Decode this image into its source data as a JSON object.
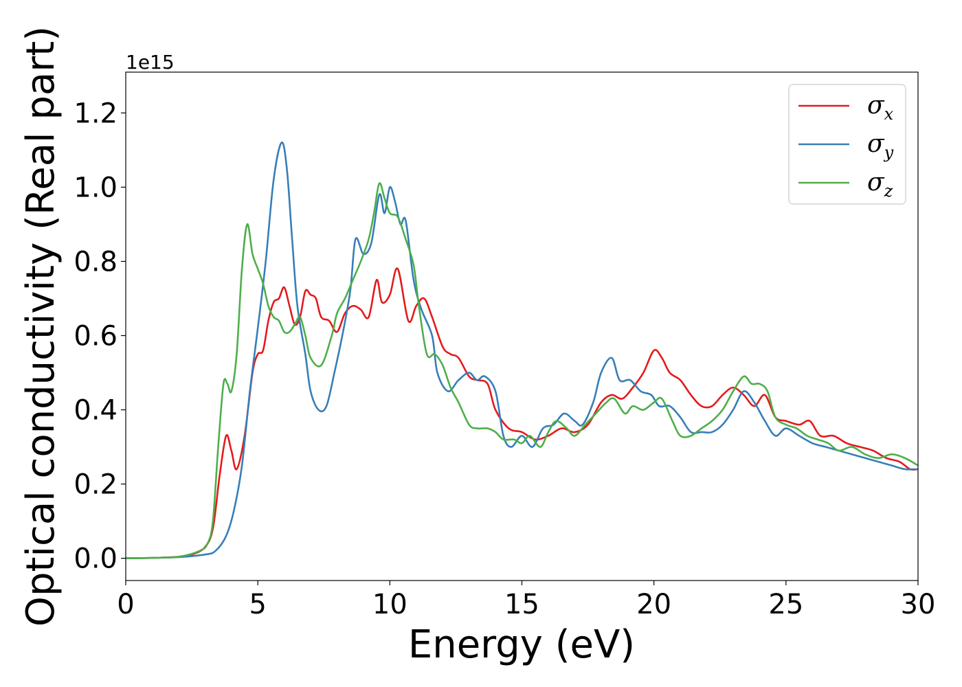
{
  "chart_data": {
    "type": "line",
    "title": "",
    "xlabel": "Energy (eV)",
    "ylabel": "Optical conductivity (Real part)",
    "y_offset_label": "1e15",
    "xlim": [
      0,
      30
    ],
    "ylim": [
      -0.06,
      1.31
    ],
    "xticks": [
      0,
      5,
      10,
      15,
      20,
      25,
      30
    ],
    "xtick_labels": [
      "0",
      "5",
      "10",
      "15",
      "20",
      "25",
      "30"
    ],
    "yticks": [
      0.0,
      0.2,
      0.4,
      0.6,
      0.8,
      1.0,
      1.2
    ],
    "ytick_labels": [
      "0.0",
      "0.2",
      "0.4",
      "0.6",
      "0.8",
      "1.0",
      "1.2"
    ],
    "grid": false,
    "legend_position": "top-right",
    "series": [
      {
        "name": "σ",
        "subscript": "x",
        "color": "#e41a1c",
        "points": [
          [
            0,
            0
          ],
          [
            1,
            0.001
          ],
          [
            2,
            0.004
          ],
          [
            2.5,
            0.01
          ],
          [
            3,
            0.03
          ],
          [
            3.3,
            0.08
          ],
          [
            3.55,
            0.22
          ],
          [
            3.8,
            0.33
          ],
          [
            4.0,
            0.29
          ],
          [
            4.2,
            0.24
          ],
          [
            4.5,
            0.33
          ],
          [
            4.8,
            0.5
          ],
          [
            5.0,
            0.55
          ],
          [
            5.2,
            0.56
          ],
          [
            5.4,
            0.64
          ],
          [
            5.6,
            0.69
          ],
          [
            5.8,
            0.7
          ],
          [
            6.0,
            0.73
          ],
          [
            6.2,
            0.68
          ],
          [
            6.4,
            0.63
          ],
          [
            6.6,
            0.65
          ],
          [
            6.8,
            0.72
          ],
          [
            7.0,
            0.71
          ],
          [
            7.2,
            0.7
          ],
          [
            7.4,
            0.65
          ],
          [
            7.7,
            0.64
          ],
          [
            8.0,
            0.61
          ],
          [
            8.3,
            0.66
          ],
          [
            8.6,
            0.68
          ],
          [
            8.9,
            0.67
          ],
          [
            9.2,
            0.65
          ],
          [
            9.5,
            0.75
          ],
          [
            9.7,
            0.69
          ],
          [
            10.0,
            0.71
          ],
          [
            10.3,
            0.78
          ],
          [
            10.7,
            0.64
          ],
          [
            11.0,
            0.68
          ],
          [
            11.3,
            0.7
          ],
          [
            11.6,
            0.65
          ],
          [
            12.0,
            0.57
          ],
          [
            12.3,
            0.55
          ],
          [
            12.6,
            0.54
          ],
          [
            13.0,
            0.49
          ],
          [
            13.3,
            0.48
          ],
          [
            13.7,
            0.47
          ],
          [
            14.0,
            0.4
          ],
          [
            14.5,
            0.35
          ],
          [
            15.0,
            0.34
          ],
          [
            15.5,
            0.32
          ],
          [
            16.0,
            0.33
          ],
          [
            16.5,
            0.35
          ],
          [
            17.0,
            0.34
          ],
          [
            17.5,
            0.36
          ],
          [
            18.0,
            0.42
          ],
          [
            18.4,
            0.44
          ],
          [
            18.8,
            0.43
          ],
          [
            19.2,
            0.46
          ],
          [
            19.6,
            0.5
          ],
          [
            20.0,
            0.56
          ],
          [
            20.3,
            0.54
          ],
          [
            20.6,
            0.5
          ],
          [
            21.0,
            0.48
          ],
          [
            21.4,
            0.44
          ],
          [
            21.8,
            0.41
          ],
          [
            22.2,
            0.41
          ],
          [
            22.6,
            0.44
          ],
          [
            23.0,
            0.46
          ],
          [
            23.4,
            0.44
          ],
          [
            23.8,
            0.41
          ],
          [
            24.2,
            0.44
          ],
          [
            24.6,
            0.38
          ],
          [
            25.0,
            0.37
          ],
          [
            25.5,
            0.36
          ],
          [
            25.9,
            0.37
          ],
          [
            26.3,
            0.33
          ],
          [
            26.8,
            0.33
          ],
          [
            27.3,
            0.31
          ],
          [
            27.8,
            0.3
          ],
          [
            28.3,
            0.29
          ],
          [
            28.8,
            0.27
          ],
          [
            29.3,
            0.26
          ],
          [
            29.7,
            0.24
          ],
          [
            30.0,
            0.24
          ]
        ]
      },
      {
        "name": "σ",
        "subscript": "y",
        "color": "#377eb8",
        "points": [
          [
            0,
            0
          ],
          [
            1,
            0.001
          ],
          [
            2,
            0.003
          ],
          [
            3,
            0.01
          ],
          [
            3.4,
            0.02
          ],
          [
            3.8,
            0.06
          ],
          [
            4.1,
            0.13
          ],
          [
            4.4,
            0.25
          ],
          [
            4.7,
            0.45
          ],
          [
            5.0,
            0.62
          ],
          [
            5.3,
            0.8
          ],
          [
            5.6,
            1.02
          ],
          [
            5.9,
            1.12
          ],
          [
            6.1,
            1.05
          ],
          [
            6.3,
            0.86
          ],
          [
            6.5,
            0.68
          ],
          [
            6.8,
            0.55
          ],
          [
            7.0,
            0.45
          ],
          [
            7.3,
            0.4
          ],
          [
            7.6,
            0.41
          ],
          [
            7.9,
            0.5
          ],
          [
            8.2,
            0.6
          ],
          [
            8.5,
            0.72
          ],
          [
            8.7,
            0.86
          ],
          [
            9.0,
            0.82
          ],
          [
            9.3,
            0.85
          ],
          [
            9.6,
            0.98
          ],
          [
            9.8,
            0.93
          ],
          [
            10.0,
            1.0
          ],
          [
            10.2,
            0.96
          ],
          [
            10.4,
            0.9
          ],
          [
            10.6,
            0.91
          ],
          [
            10.9,
            0.75
          ],
          [
            11.2,
            0.67
          ],
          [
            11.6,
            0.6
          ],
          [
            11.8,
            0.5
          ],
          [
            12.2,
            0.45
          ],
          [
            12.6,
            0.48
          ],
          [
            13.0,
            0.5
          ],
          [
            13.3,
            0.48
          ],
          [
            13.6,
            0.49
          ],
          [
            14.0,
            0.45
          ],
          [
            14.3,
            0.33
          ],
          [
            14.6,
            0.3
          ],
          [
            15.0,
            0.33
          ],
          [
            15.4,
            0.3
          ],
          [
            15.8,
            0.35
          ],
          [
            16.2,
            0.36
          ],
          [
            16.6,
            0.39
          ],
          [
            17.0,
            0.37
          ],
          [
            17.3,
            0.36
          ],
          [
            17.7,
            0.42
          ],
          [
            18.0,
            0.5
          ],
          [
            18.4,
            0.54
          ],
          [
            18.7,
            0.48
          ],
          [
            19.1,
            0.48
          ],
          [
            19.5,
            0.45
          ],
          [
            19.9,
            0.44
          ],
          [
            20.2,
            0.41
          ],
          [
            20.6,
            0.41
          ],
          [
            21.0,
            0.38
          ],
          [
            21.4,
            0.34
          ],
          [
            21.8,
            0.34
          ],
          [
            22.2,
            0.34
          ],
          [
            22.6,
            0.36
          ],
          [
            23.0,
            0.4
          ],
          [
            23.4,
            0.45
          ],
          [
            23.8,
            0.42
          ],
          [
            24.2,
            0.37
          ],
          [
            24.6,
            0.33
          ],
          [
            25.0,
            0.35
          ],
          [
            25.5,
            0.33
          ],
          [
            26.0,
            0.31
          ],
          [
            26.5,
            0.3
          ],
          [
            27.0,
            0.29
          ],
          [
            27.5,
            0.28
          ],
          [
            28.0,
            0.27
          ],
          [
            28.5,
            0.26
          ],
          [
            29.0,
            0.25
          ],
          [
            29.5,
            0.24
          ],
          [
            30.0,
            0.24
          ]
        ]
      },
      {
        "name": "σ",
        "subscript": "z",
        "color": "#4daf4a",
        "points": [
          [
            0,
            0
          ],
          [
            1,
            0.001
          ],
          [
            2,
            0.004
          ],
          [
            2.8,
            0.02
          ],
          [
            3.1,
            0.04
          ],
          [
            3.3,
            0.1
          ],
          [
            3.5,
            0.3
          ],
          [
            3.7,
            0.47
          ],
          [
            3.85,
            0.47
          ],
          [
            4.0,
            0.45
          ],
          [
            4.2,
            0.55
          ],
          [
            4.4,
            0.78
          ],
          [
            4.6,
            0.9
          ],
          [
            4.8,
            0.82
          ],
          [
            5.0,
            0.78
          ],
          [
            5.2,
            0.74
          ],
          [
            5.4,
            0.68
          ],
          [
            5.6,
            0.65
          ],
          [
            5.8,
            0.64
          ],
          [
            6.0,
            0.61
          ],
          [
            6.2,
            0.61
          ],
          [
            6.4,
            0.63
          ],
          [
            6.6,
            0.65
          ],
          [
            6.8,
            0.6
          ],
          [
            7.0,
            0.54
          ],
          [
            7.4,
            0.52
          ],
          [
            7.8,
            0.6
          ],
          [
            8.0,
            0.66
          ],
          [
            8.3,
            0.7
          ],
          [
            8.6,
            0.75
          ],
          [
            8.9,
            0.8
          ],
          [
            9.2,
            0.86
          ],
          [
            9.4,
            0.93
          ],
          [
            9.6,
            1.01
          ],
          [
            9.8,
            0.97
          ],
          [
            10.0,
            0.93
          ],
          [
            10.3,
            0.92
          ],
          [
            10.6,
            0.86
          ],
          [
            10.9,
            0.79
          ],
          [
            11.1,
            0.68
          ],
          [
            11.4,
            0.55
          ],
          [
            11.7,
            0.55
          ],
          [
            12.0,
            0.52
          ],
          [
            12.3,
            0.46
          ],
          [
            12.6,
            0.42
          ],
          [
            13.0,
            0.36
          ],
          [
            13.3,
            0.35
          ],
          [
            13.7,
            0.35
          ],
          [
            14.0,
            0.34
          ],
          [
            14.3,
            0.32
          ],
          [
            14.7,
            0.32
          ],
          [
            15.0,
            0.31
          ],
          [
            15.3,
            0.33
          ],
          [
            15.7,
            0.3
          ],
          [
            16.0,
            0.34
          ],
          [
            16.3,
            0.37
          ],
          [
            16.7,
            0.35
          ],
          [
            17.0,
            0.33
          ],
          [
            17.4,
            0.36
          ],
          [
            17.8,
            0.39
          ],
          [
            18.2,
            0.42
          ],
          [
            18.5,
            0.43
          ],
          [
            18.9,
            0.39
          ],
          [
            19.2,
            0.41
          ],
          [
            19.6,
            0.4
          ],
          [
            20.0,
            0.42
          ],
          [
            20.3,
            0.43
          ],
          [
            20.7,
            0.37
          ],
          [
            21.0,
            0.33
          ],
          [
            21.4,
            0.33
          ],
          [
            21.8,
            0.35
          ],
          [
            22.2,
            0.37
          ],
          [
            22.6,
            0.4
          ],
          [
            23.0,
            0.45
          ],
          [
            23.4,
            0.49
          ],
          [
            23.7,
            0.47
          ],
          [
            24.0,
            0.47
          ],
          [
            24.3,
            0.45
          ],
          [
            24.6,
            0.38
          ],
          [
            25.0,
            0.36
          ],
          [
            25.4,
            0.35
          ],
          [
            25.8,
            0.33
          ],
          [
            26.2,
            0.32
          ],
          [
            26.6,
            0.31
          ],
          [
            27.0,
            0.29
          ],
          [
            27.5,
            0.3
          ],
          [
            28.0,
            0.28
          ],
          [
            28.5,
            0.27
          ],
          [
            29.0,
            0.28
          ],
          [
            29.5,
            0.27
          ],
          [
            30.0,
            0.25
          ]
        ]
      }
    ]
  }
}
